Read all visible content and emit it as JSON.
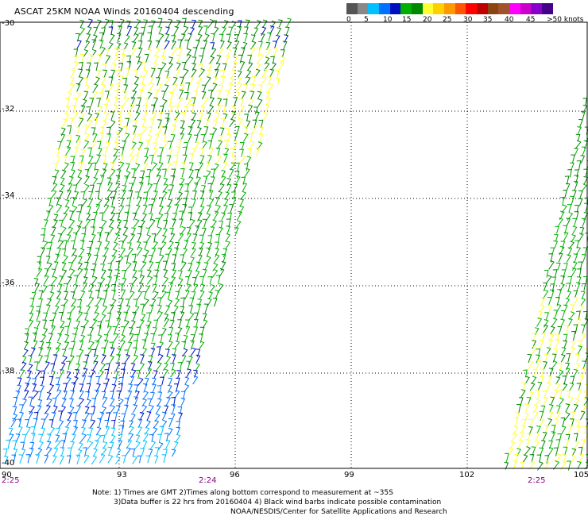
{
  "title": "ASCAT 25KM NOAA Winds 20160404 descending",
  "legend": {
    "colors": [
      "#555555",
      "#888888",
      "#00c0ff",
      "#0070ff",
      "#0010c0",
      "#00b000",
      "#008800",
      "#ffff33",
      "#ffd000",
      "#ff9900",
      "#ff5500",
      "#ff0000",
      "#c00000",
      "#8b4513",
      "#a0522d",
      "#ff00ff",
      "#cc00cc",
      "#8800cc",
      "#440088"
    ],
    "labels": [
      "0",
      "5",
      "10",
      "15",
      "20",
      "25",
      "30",
      "35",
      "40",
      "45",
      ">50 knots"
    ]
  },
  "axes": {
    "lat_labels": [
      "-30",
      "-32",
      "-34",
      "-36",
      "-38",
      "-40"
    ],
    "lon_labels": [
      "90",
      "93",
      "96",
      "99",
      "102",
      "105"
    ]
  },
  "times": [
    "2:25",
    "2:24",
    "2:25"
  ],
  "notes": {
    "line1": "Note: 1) Times are GMT 2)Times along bottom correspond to measurement at ~35S",
    "line2": "3)Data buffer is 22 hrs from 20160404 4) Black wind barbs indicate possible contamination",
    "line3": "NOAA/NESDIS/Center for Satellite Applications and Research"
  }
}
